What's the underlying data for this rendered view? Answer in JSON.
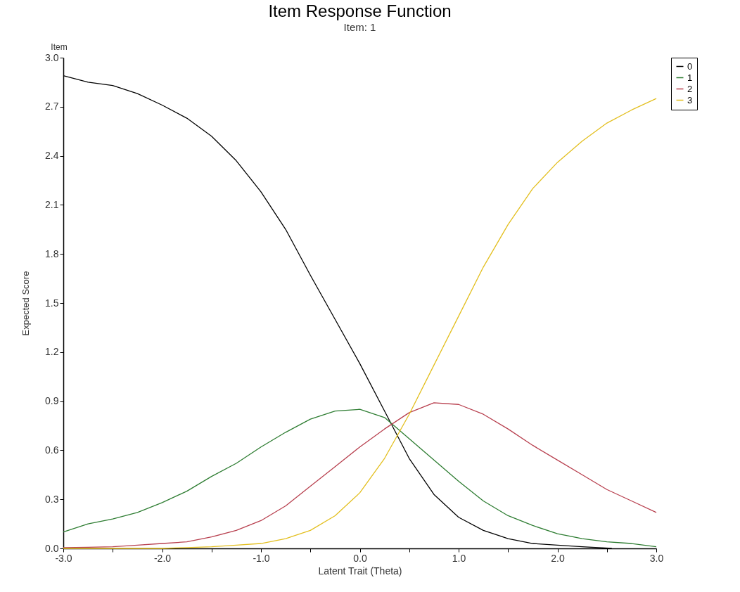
{
  "chart_data": {
    "type": "line",
    "title": "Item Response Function",
    "subtitle": "Item: 1",
    "xlabel": "Latent Trait (Theta)",
    "ylabel": "Expected Score",
    "annotations": [
      "Item"
    ],
    "x": [
      -3,
      -2.75,
      -2.5,
      -2.25,
      -2,
      -1.75,
      -1.5,
      -1.25,
      -1,
      -0.75,
      -0.5,
      -0.25,
      0,
      0.25,
      0.5,
      0.75,
      1,
      1.25,
      1.5,
      1.75,
      2,
      2.25,
      2.5,
      2.75,
      3
    ],
    "series": [
      {
        "name": "0",
        "color": "#000000",
        "x": [
          -3,
          -2.75,
          -2.5,
          -2.25,
          -2,
          -1.75,
          -1.5,
          -1.25,
          -1,
          -0.75,
          -0.5,
          -0.25,
          0,
          0.25,
          0.5,
          0.75,
          1,
          1.25,
          1.5,
          1.75,
          2,
          2.25,
          2.55
        ],
        "values": [
          2.89,
          2.85,
          2.83,
          2.78,
          2.71,
          2.63,
          2.52,
          2.37,
          2.18,
          1.95,
          1.67,
          1.4,
          1.13,
          0.84,
          0.55,
          0.33,
          0.19,
          0.11,
          0.06,
          0.03,
          0.02,
          0.01,
          0
        ]
      },
      {
        "name": "1",
        "color": "#2e7d32",
        "values": [
          0.1,
          0.15,
          0.18,
          0.22,
          0.28,
          0.35,
          0.44,
          0.52,
          0.62,
          0.71,
          0.79,
          0.84,
          0.85,
          0.8,
          0.67,
          0.54,
          0.41,
          0.29,
          0.2,
          0.14,
          0.09,
          0.06,
          0.04,
          0.03,
          0.01
        ]
      },
      {
        "name": "2",
        "color": "#b8404f",
        "values": [
          0.005,
          0.007,
          0.01,
          0.02,
          0.03,
          0.04,
          0.07,
          0.11,
          0.17,
          0.26,
          0.38,
          0.5,
          0.62,
          0.73,
          0.83,
          0.89,
          0.88,
          0.82,
          0.73,
          0.63,
          0.54,
          0.45,
          0.36,
          0.29,
          0.22
        ]
      },
      {
        "name": "3",
        "color": "#e3bf1f",
        "values": [
          0,
          0,
          0,
          0,
          0,
          0.005,
          0.01,
          0.02,
          0.03,
          0.06,
          0.11,
          0.2,
          0.34,
          0.55,
          0.82,
          1.12,
          1.42,
          1.72,
          1.98,
          2.2,
          2.36,
          2.49,
          2.6,
          2.68,
          2.75
        ]
      }
    ],
    "xlim": [
      -3,
      3
    ],
    "ylim": [
      0,
      3
    ],
    "xticks": [
      {
        "value": -3,
        "label": "-3.0"
      },
      {
        "value": -2.5,
        "label": null
      },
      {
        "value": -2,
        "label": "-2.0"
      },
      {
        "value": -1.5,
        "label": null
      },
      {
        "value": -1,
        "label": "-1.0"
      },
      {
        "value": -0.5,
        "label": null
      },
      {
        "value": 0,
        "label": "0.0"
      },
      {
        "value": 0.5,
        "label": null
      },
      {
        "value": 1,
        "label": "1.0"
      },
      {
        "value": 1.5,
        "label": null
      },
      {
        "value": 2,
        "label": "2.0"
      },
      {
        "value": 2.5,
        "label": null
      },
      {
        "value": 3,
        "label": "3.0"
      }
    ],
    "yticks": [
      {
        "value": 0,
        "label": "0.0"
      },
      {
        "value": 0.3,
        "label": "0.3"
      },
      {
        "value": 0.6,
        "label": "0.6"
      },
      {
        "value": 0.9,
        "label": "0.9"
      },
      {
        "value": 1.2,
        "label": "1.2"
      },
      {
        "value": 1.5,
        "label": "1.5"
      },
      {
        "value": 1.8,
        "label": "1.8"
      },
      {
        "value": 2.1,
        "label": "2.1"
      },
      {
        "value": 2.4,
        "label": "2.4"
      },
      {
        "value": 2.7,
        "label": "2.7"
      },
      {
        "value": 3,
        "label": "3.0"
      }
    ],
    "grid": false,
    "legend": "right",
    "marker": "none",
    "line_style": "solid"
  }
}
